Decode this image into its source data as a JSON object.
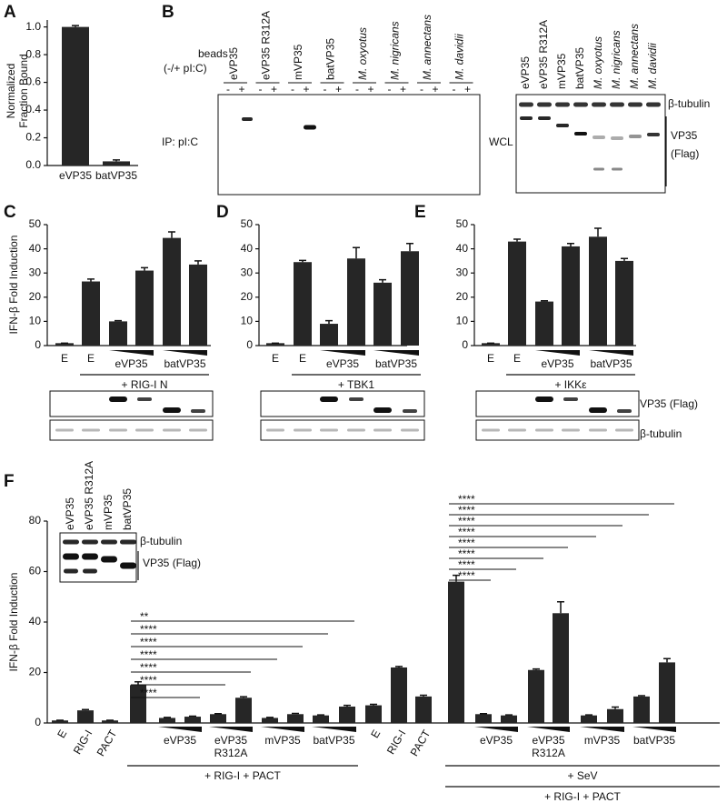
{
  "panel_labels": [
    "A",
    "B",
    "C",
    "D",
    "E",
    "F"
  ],
  "chart_data": [
    {
      "type": "bar",
      "ylabel": [
        "Normalized",
        "Fraction Bound"
      ],
      "categories": [
        "eVP35",
        "batVP35"
      ],
      "values": [
        1.0,
        0.03
      ],
      "errors": [
        0.01,
        0.01
      ],
      "color": "#262626",
      "ylim": [
        0,
        1.05
      ],
      "yticks": [
        {
          "value": 0,
          "label": "0.0"
        },
        {
          "value": 0.2,
          "label": "0.2"
        },
        {
          "value": 0.4,
          "label": "0.4"
        },
        {
          "value": 0.6,
          "label": "0.6"
        },
        {
          "value": 0.8,
          "label": "0.8"
        },
        {
          "value": 1.0,
          "label": "1.0"
        }
      ]
    },
    {
      "type": "bar",
      "ylabel": "IFN-β Fold Induction",
      "categories": [
        "E",
        "E",
        null,
        null,
        null,
        null
      ],
      "groups": [
        [
          "eVP35"
        ],
        [
          "batVP35"
        ]
      ],
      "treatments": [
        "+ RIG-I N"
      ],
      "values": [
        1,
        26.5,
        10,
        31,
        44.5,
        33.5
      ],
      "errors": [
        0,
        1,
        0.3,
        1.2,
        2.5,
        1.5
      ],
      "color": "#262626",
      "ylim": [
        0,
        50
      ],
      "yticks": [
        0,
        10,
        20,
        30,
        40,
        50
      ]
    },
    {
      "type": "bar",
      "categories": [
        "E",
        "E",
        null,
        null,
        null,
        null
      ],
      "groups": [
        [
          "eVP35"
        ],
        [
          "batVP35"
        ]
      ],
      "treatments": [
        "+ TBK1"
      ],
      "values": [
        1,
        34.5,
        9,
        36,
        26,
        39
      ],
      "errors": [
        0,
        0.7,
        1.3,
        4.5,
        1.2,
        3.2
      ],
      "color": "#262626",
      "ylim": [
        0,
        50
      ],
      "yticks": [
        0,
        10,
        20,
        30,
        40,
        50
      ]
    },
    {
      "type": "bar",
      "categories": [
        "E",
        "E",
        null,
        null,
        null,
        null
      ],
      "groups": [
        [
          "eVP35"
        ],
        [
          "batVP35"
        ]
      ],
      "treatments": [
        "+ IKKε"
      ],
      "values": [
        1,
        43,
        18.2,
        41,
        45,
        35
      ],
      "errors": [
        0,
        1,
        0.3,
        1.2,
        3.5,
        1
      ],
      "color": "#262626",
      "ylim": [
        0,
        50
      ],
      "yticks": [
        0,
        10,
        20,
        30,
        40,
        50
      ]
    },
    {
      "type": "bar",
      "ylabel": "IFN-β Fold Induction",
      "categories": [
        "E",
        "RIG-I",
        "PACT",
        null,
        null,
        null,
        null,
        null,
        null,
        null,
        null,
        null,
        "E",
        "RIG-I",
        "PACT",
        null,
        null,
        null,
        null,
        null,
        null,
        null,
        null,
        null
      ],
      "groups": [
        [
          "eVP35"
        ],
        [
          "eVP35",
          "R312A"
        ],
        [
          "mVP35"
        ],
        [
          "batVP35"
        ],
        [
          "eVP35"
        ],
        [
          "eVP35",
          "R312A"
        ],
        [
          "mVP35"
        ],
        [
          "batVP35"
        ]
      ],
      "treatments": [
        "+ RIG-I + PACT",
        "+ SeV",
        "+ RIG-I + PACT"
      ],
      "values": [
        1,
        5,
        1,
        15,
        2,
        2.5,
        3.5,
        10,
        2,
        3.5,
        3,
        6.5,
        7,
        22,
        10.5,
        56,
        3.5,
        3,
        21,
        43.5,
        3,
        5.5,
        10.5,
        24
      ],
      "errors": [
        0.1,
        0.3,
        0.1,
        1.3,
        0.2,
        0.2,
        0.2,
        0.4,
        0.2,
        0.3,
        0.2,
        0.5,
        0.4,
        0.4,
        0.5,
        2.5,
        0.2,
        0.2,
        0.4,
        4.5,
        0.2,
        0.8,
        0.3,
        1.5
      ],
      "color": "#262626",
      "ylim": [
        0,
        80
      ],
      "yticks": [
        0,
        20,
        40,
        60,
        80
      ],
      "significance_left": [
        "****",
        "****",
        "****",
        "****",
        "****",
        "****",
        "**"
      ],
      "significance_right": [
        "****",
        "****",
        "****",
        "****",
        "****",
        "****",
        "****",
        "****"
      ]
    }
  ],
  "blot_B": {
    "beads": "beads",
    "pIC": "(-/+ pI:C)",
    "ip": "IP: pI:C",
    "lanes": [
      "eVP35",
      "eVP35 R312A",
      "mVP35",
      "batVP35",
      "M. oxyotus",
      "M. nigricans",
      "M. annectans",
      "M. davidii"
    ],
    "signs": [
      "-",
      "+"
    ],
    "wcl": "WCL",
    "tubulin": "β-tubulin",
    "vp35": "VP35",
    "flag": "(Flag)"
  },
  "blot_CDE": {
    "vp35": "VP35 (Flag)",
    "tubulin": "β-tubulin"
  },
  "inset_F": {
    "lanes": [
      "eVP35",
      "eVP35 R312A",
      "mVP35",
      "batVP35"
    ],
    "tubulin": "β-tubulin",
    "vp35": "VP35 (Flag)"
  }
}
